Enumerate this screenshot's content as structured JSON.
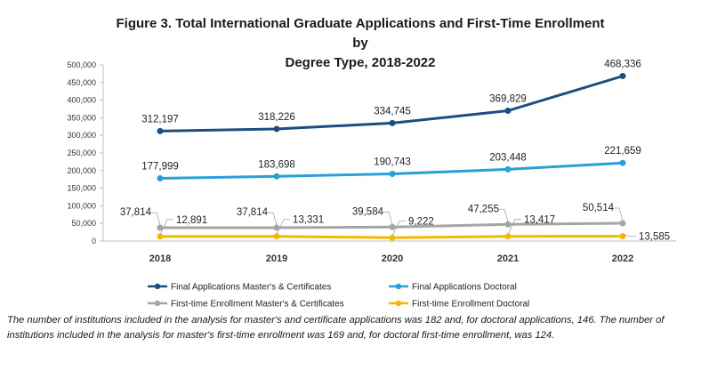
{
  "chart_data": {
    "type": "line",
    "title_line1": "Figure 3. Total International Graduate Applications and  First-Time Enrollment by",
    "title_line2": "Degree Type, 2018-2022",
    "x": [
      "2018",
      "2019",
      "2020",
      "2021",
      "2022"
    ],
    "ylim": [
      0,
      500000
    ],
    "yticks": [
      "0",
      "50,000",
      "100,000",
      "150,000",
      "200,000",
      "250,000",
      "300,000",
      "350,000",
      "400,000",
      "450,000",
      "500,000"
    ],
    "grid": false,
    "legend_position": "bottom",
    "series": [
      {
        "name": "Final Applications  Master's & Certificates",
        "color": "#1c4e80",
        "values": [
          312197,
          318226,
          334745,
          369829,
          468336
        ],
        "labels": [
          "312,197",
          "318,226",
          "334,745",
          "369,829",
          "468,336"
        ]
      },
      {
        "name": "Final Applications  Doctoral",
        "color": "#2a9fd8",
        "values": [
          177999,
          183698,
          190743,
          203448,
          221659
        ],
        "labels": [
          "177,999",
          "183,698",
          "190,743",
          "203,448",
          "221,659"
        ]
      },
      {
        "name": "First-time Enrollment  Master's & Certificates",
        "color": "#a5a5a5",
        "values": [
          37814,
          37814,
          39584,
          47255,
          50514
        ],
        "labels": [
          "37,814",
          "37,814",
          "39,584",
          "47,255",
          "50,514"
        ]
      },
      {
        "name": "First-time Enrollment  Doctoral",
        "color": "#f5b800",
        "values": [
          12891,
          13331,
          9222,
          13417,
          13585
        ],
        "labels": [
          "12,891",
          "13,331",
          "9,222",
          "13,417",
          "13,585"
        ]
      }
    ]
  },
  "note": "The number of institutions included in the analysis for master's and certificate applications was 182 and, for doctoral applications, 146. The number of institutions included in the analysis for master's first-time enrollment was 169 and, for doctoral first-time enrollment, was 124."
}
